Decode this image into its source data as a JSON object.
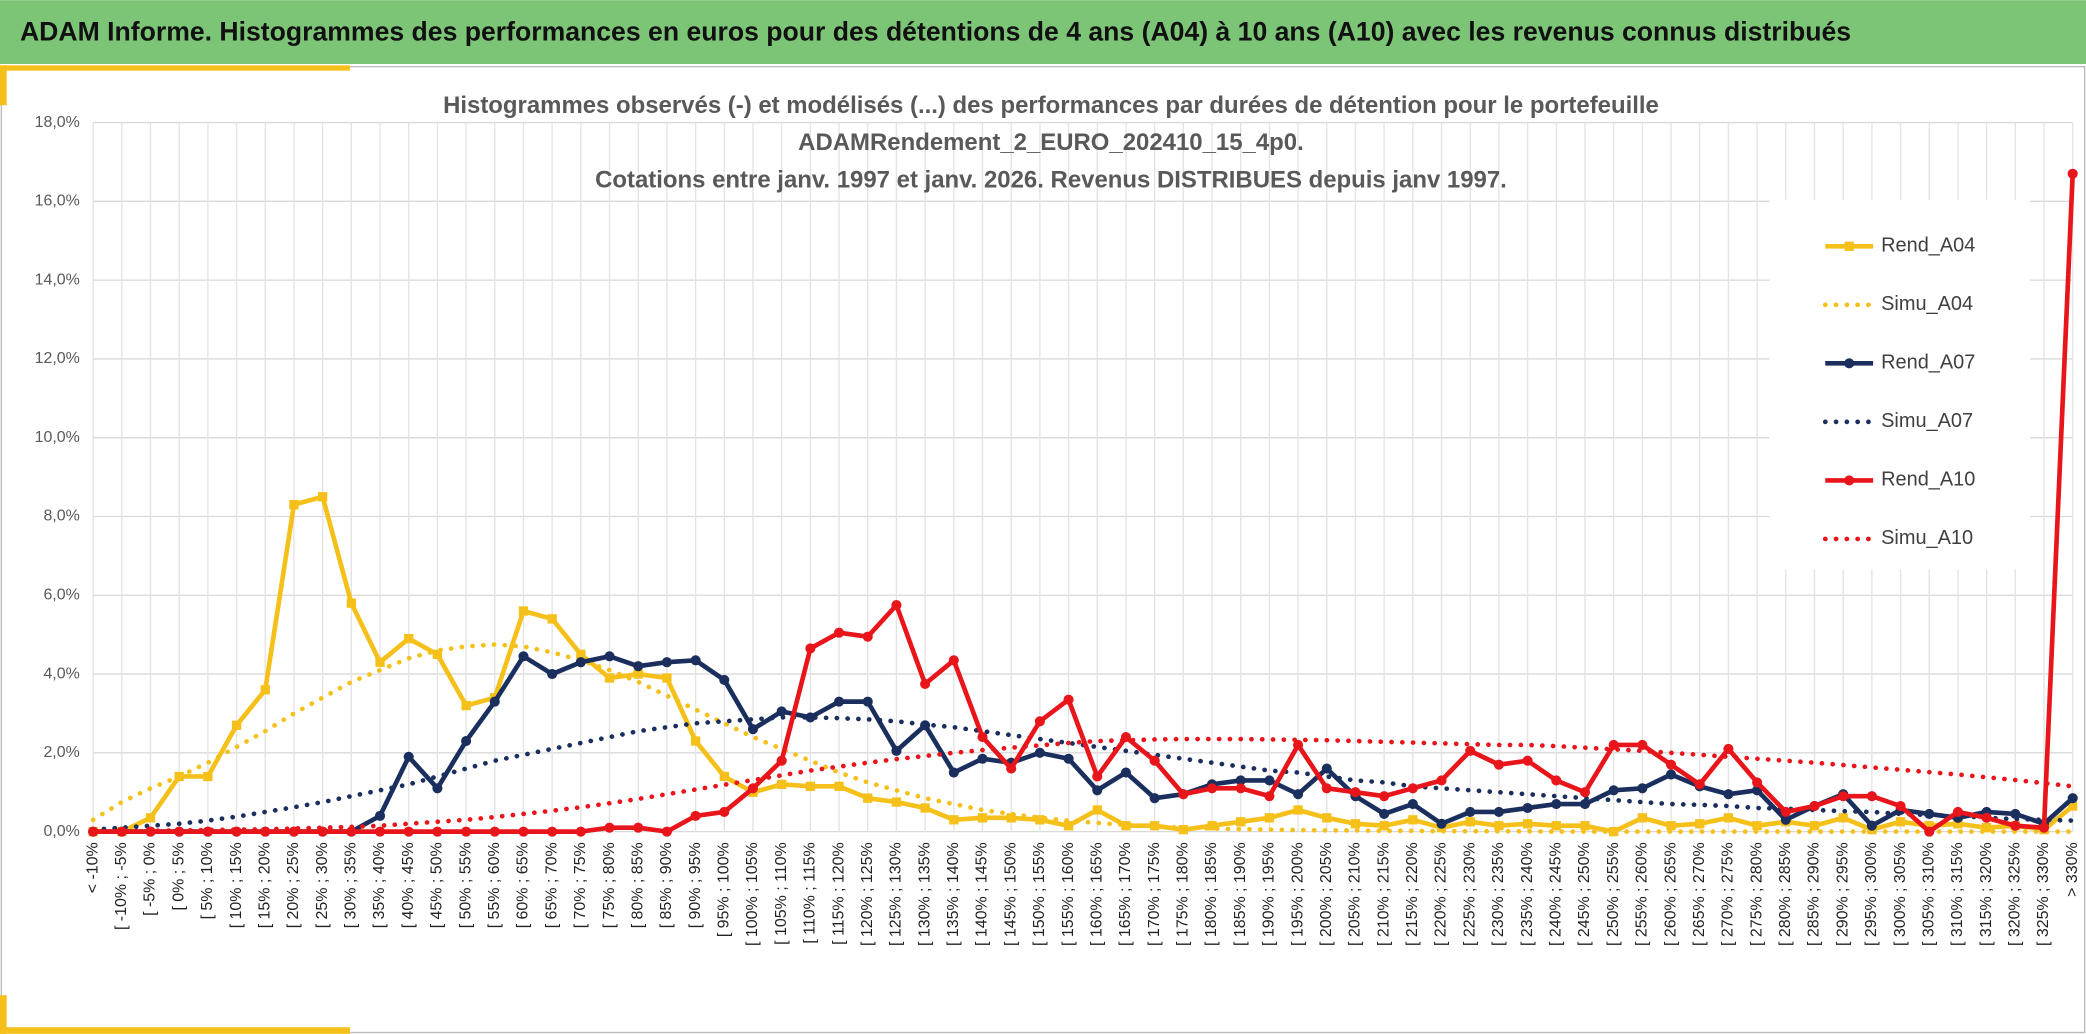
{
  "header": {
    "title": "ADAM Informe. Histogrammes des performances en euros pour des détentions de 4 ans (A04) à 10 ans (A10) avec les revenus connus distribués"
  },
  "chart_data": {
    "type": "line",
    "title": [
      "Histogrammes observés (-) et modélisés (...) des performances  par durées de détention pour le portefeuille",
      "ADAMRendement_2_EURO_202410_15_4p0.",
      "Cotations entre janv. 1997 et janv. 2026. Revenus DISTRIBUES depuis janv 1997."
    ],
    "categories": [
      "< -10%",
      "[ -10% ; -5%",
      "[ -5% ; 0%",
      "[ 0% ; 5%",
      "[ 5% ; 10%",
      "[ 10% ; 15%",
      "[ 15% ; 20%",
      "[ 20% ; 25%",
      "[ 25% ; 30%",
      "[ 30% ; 35%",
      "[ 35% ; 40%",
      "[ 40% ; 45%",
      "[ 45% ; 50%",
      "[ 50% ; 55%",
      "[ 55% ; 60%",
      "[ 60% ; 65%",
      "[ 65% ; 70%",
      "[ 70% ; 75%",
      "[ 75% ; 80%",
      "[ 80% ; 85%",
      "[ 85% ; 90%",
      "[ 90% ; 95%",
      "[ 95% ; 100%",
      "[ 100% ; 105%",
      "[ 105% ; 110%",
      "[ 110% ; 115%",
      "[ 115% ; 120%",
      "[ 120% ; 125%",
      "[ 125% ; 130%",
      "[ 130% ; 135%",
      "[ 135% ; 140%",
      "[ 140% ; 145%",
      "[ 145% ; 150%",
      "[ 150% ; 155%",
      "[ 155% ; 160%",
      "[ 160% ; 165%",
      "[ 165% ; 170%",
      "[ 170% ; 175%",
      "[ 175% ; 180%",
      "[ 180% ; 185%",
      "[ 185% ; 190%",
      "[ 190% ; 195%",
      "[ 195% ; 200%",
      "[ 200% ; 205%",
      "[ 205% ; 210%",
      "[ 210% ; 215%",
      "[ 215% ; 220%",
      "[ 220% ; 225%",
      "[ 225% ; 230%",
      "[ 230% ; 235%",
      "[ 235% ; 240%",
      "[ 240% ; 245%",
      "[ 245% ; 250%",
      "[ 250% ; 255%",
      "[ 255% ; 260%",
      "[ 260% ; 265%",
      "[ 265% ; 270%",
      "[ 270% ; 275%",
      "[ 275% ; 280%",
      "[ 280% ; 285%",
      "[ 285% ; 290%",
      "[ 290% ; 295%",
      "[ 295% ; 300%",
      "[ 300% ; 305%",
      "[ 305% ; 310%",
      "[ 310% ; 315%",
      "[ 315% ; 320%",
      "[ 320% ; 325%",
      "[ 325% ; 330%",
      "> 330%"
    ],
    "series": [
      {
        "name": "Rend_A04",
        "color": "#f5c01a",
        "style": "solid",
        "marker": "square",
        "values": [
          0,
          0,
          0.35,
          1.4,
          1.4,
          2.7,
          3.6,
          8.3,
          8.5,
          5.8,
          4.3,
          4.9,
          4.5,
          3.2,
          3.4,
          5.6,
          5.4,
          4.5,
          3.9,
          4.0,
          3.9,
          2.3,
          1.4,
          1.0,
          1.2,
          1.15,
          1.15,
          0.85,
          0.75,
          0.6,
          0.3,
          0.35,
          0.35,
          0.3,
          0.15,
          0.55,
          0.15,
          0.15,
          0.05,
          0.15,
          0.25,
          0.35,
          0.55,
          0.35,
          0.2,
          0.15,
          0.3,
          0.1,
          0.25,
          0.15,
          0.2,
          0.15,
          0.15,
          0,
          0.35,
          0.15,
          0.2,
          0.35,
          0.15,
          0.25,
          0.15,
          0.35,
          0.05,
          0.25,
          0.15,
          0.2,
          0.1,
          0.15,
          0.05,
          0.65
        ]
      },
      {
        "name": "Simu_A04",
        "color": "#f5c01a",
        "style": "dotted",
        "marker": "none",
        "values": [
          0.3,
          0.75,
          1.1,
          1.4,
          1.75,
          2.15,
          2.55,
          3.0,
          3.4,
          3.8,
          4.1,
          4.4,
          4.6,
          4.7,
          4.75,
          4.7,
          4.55,
          4.35,
          4.1,
          3.8,
          3.45,
          3.1,
          2.75,
          2.4,
          2.1,
          1.8,
          1.5,
          1.25,
          1.05,
          0.85,
          0.7,
          0.55,
          0.45,
          0.35,
          0.28,
          0.22,
          0.17,
          0.13,
          0.1,
          0.08,
          0.06,
          0.05,
          0.04,
          0.03,
          0.03,
          0.02,
          0.02,
          0.01,
          0.01,
          0.01,
          0.01,
          0,
          0,
          0,
          0,
          0,
          0,
          0,
          0,
          0,
          0,
          0,
          0,
          0,
          0,
          0,
          0,
          0,
          0,
          0
        ]
      },
      {
        "name": "Rend_A07",
        "color": "#1b2f5e",
        "style": "solid",
        "marker": "circle",
        "values": [
          0,
          0,
          0,
          0,
          0,
          0,
          0,
          0,
          0,
          0,
          0.4,
          1.9,
          1.1,
          2.3,
          3.3,
          4.45,
          4.0,
          4.3,
          4.45,
          4.2,
          4.3,
          4.35,
          3.85,
          2.6,
          3.05,
          2.9,
          3.3,
          3.3,
          2.05,
          2.7,
          1.5,
          1.85,
          1.75,
          2.0,
          1.85,
          1.05,
          1.5,
          0.85,
          0.95,
          1.2,
          1.3,
          1.3,
          0.95,
          1.6,
          0.9,
          0.45,
          0.7,
          0.2,
          0.5,
          0.5,
          0.6,
          0.7,
          0.7,
          1.05,
          1.1,
          1.45,
          1.15,
          0.95,
          1.05,
          0.3,
          0.65,
          0.95,
          0.15,
          0.55,
          0.45,
          0.35,
          0.5,
          0.45,
          0.2,
          0.85
        ]
      },
      {
        "name": "Simu_A07",
        "color": "#1b2f5e",
        "style": "dotted",
        "marker": "none",
        "values": [
          0.05,
          0.1,
          0.15,
          0.2,
          0.28,
          0.38,
          0.5,
          0.62,
          0.75,
          0.9,
          1.05,
          1.2,
          1.4,
          1.6,
          1.8,
          1.95,
          2.1,
          2.25,
          2.4,
          2.55,
          2.65,
          2.75,
          2.8,
          2.85,
          2.9,
          2.9,
          2.88,
          2.85,
          2.8,
          2.72,
          2.65,
          2.55,
          2.45,
          2.35,
          2.25,
          2.15,
          2.05,
          1.95,
          1.85,
          1.75,
          1.65,
          1.55,
          1.5,
          1.4,
          1.3,
          1.25,
          1.15,
          1.1,
          1.05,
          1.0,
          0.95,
          0.9,
          0.85,
          0.8,
          0.75,
          0.7,
          0.68,
          0.65,
          0.6,
          0.58,
          0.55,
          0.52,
          0.5,
          0.45,
          0.42,
          0.4,
          0.35,
          0.32,
          0.3,
          0.28
        ]
      },
      {
        "name": "Rend_A10",
        "color": "#e8151b",
        "style": "solid",
        "marker": "circle",
        "values": [
          0,
          0,
          0,
          0,
          0,
          0,
          0,
          0,
          0,
          0,
          0,
          0,
          0,
          0,
          0,
          0,
          0,
          0,
          0.1,
          0.1,
          0,
          0.4,
          0.5,
          1.1,
          1.8,
          4.65,
          5.05,
          4.95,
          5.75,
          3.75,
          4.35,
          2.4,
          1.6,
          2.8,
          3.35,
          1.4,
          2.4,
          1.8,
          0.95,
          1.1,
          1.1,
          0.9,
          2.2,
          1.1,
          1.0,
          0.9,
          1.1,
          1.3,
          2.05,
          1.7,
          1.8,
          1.3,
          1.0,
          2.2,
          2.2,
          1.7,
          1.2,
          2.1,
          1.25,
          0.5,
          0.65,
          0.9,
          0.9,
          0.65,
          0,
          0.5,
          0.35,
          0.15,
          0.1,
          16.7
        ]
      },
      {
        "name": "Simu_A10",
        "color": "#e8151b",
        "style": "dotted",
        "marker": "none",
        "values": [
          0,
          0.01,
          0.02,
          0.03,
          0.04,
          0.05,
          0.06,
          0.08,
          0.1,
          0.12,
          0.15,
          0.2,
          0.25,
          0.3,
          0.37,
          0.45,
          0.53,
          0.62,
          0.72,
          0.83,
          0.95,
          1.07,
          1.19,
          1.31,
          1.43,
          1.55,
          1.65,
          1.75,
          1.84,
          1.92,
          2.0,
          2.07,
          2.13,
          2.19,
          2.25,
          2.3,
          2.32,
          2.34,
          2.35,
          2.35,
          2.35,
          2.34,
          2.33,
          2.32,
          2.3,
          2.28,
          2.26,
          2.24,
          2.22,
          2.2,
          2.2,
          2.17,
          2.13,
          2.09,
          2.05,
          2.0,
          1.95,
          1.9,
          1.85,
          1.8,
          1.75,
          1.69,
          1.63,
          1.57,
          1.51,
          1.45,
          1.38,
          1.31,
          1.23,
          1.15
        ]
      }
    ],
    "ylim": [
      0,
      18
    ],
    "yticks": [
      {
        "value": 0,
        "label": "0,0%"
      },
      {
        "value": 2,
        "label": "2,0%"
      },
      {
        "value": 4,
        "label": "4,0%"
      },
      {
        "value": 6,
        "label": "6,0%"
      },
      {
        "value": 8,
        "label": "8,0%"
      },
      {
        "value": 10,
        "label": "10,0%"
      },
      {
        "value": 12,
        "label": "12,0%"
      },
      {
        "value": 14,
        "label": "14,0%"
      },
      {
        "value": 16,
        "label": "16,0%"
      },
      {
        "value": 18,
        "label": "18,0%"
      }
    ],
    "grid": true,
    "legend": "right"
  }
}
